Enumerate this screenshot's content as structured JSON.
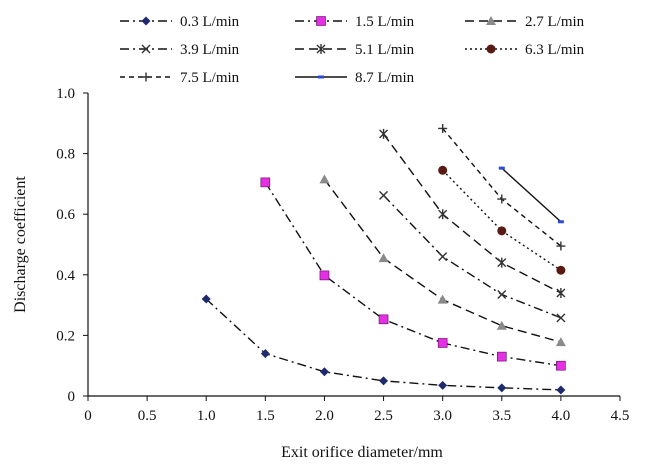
{
  "chart_data": {
    "type": "line",
    "xlabel": "Exit orifice diameter/mm",
    "ylabel": "Discharge coefficient",
    "xlim": [
      0,
      4.5
    ],
    "ylim": [
      0,
      1.0
    ],
    "x_ticks": [
      0,
      0.5,
      1.0,
      1.5,
      2.0,
      2.5,
      3.0,
      3.5,
      4.0,
      4.5
    ],
    "x_tick_labels": [
      "0",
      "0.5",
      "1.0",
      "1.5",
      "2.0",
      "2.5",
      "3.0",
      "3.5",
      "4.0",
      "4.5"
    ],
    "y_ticks": [
      0,
      0.2,
      0.4,
      0.6,
      0.8,
      1.0
    ],
    "y_tick_labels": [
      "0",
      "0.2",
      "0.4",
      "0.6",
      "0.8",
      "1.0"
    ],
    "grid": false,
    "legend_position": "top",
    "series": [
      {
        "name": "0.3 L/min",
        "x": [
          1.0,
          1.5,
          2.0,
          2.5,
          3.0,
          3.5,
          4.0
        ],
        "y": [
          0.32,
          0.14,
          0.08,
          0.05,
          0.035,
          0.027,
          0.02
        ],
        "marker": "diamond",
        "marker_color": "#1f2a6e",
        "dash": "dashdot"
      },
      {
        "name": "1.5 L/min",
        "x": [
          1.5,
          2.0,
          2.5,
          3.0,
          3.5,
          4.0
        ],
        "y": [
          0.705,
          0.398,
          0.253,
          0.175,
          0.13,
          0.1
        ],
        "marker": "square",
        "marker_color": "#e52fe5",
        "dash": "dashdot"
      },
      {
        "name": "2.7 L/min",
        "x": [
          2.0,
          2.5,
          3.0,
          3.5,
          4.0
        ],
        "y": [
          0.715,
          0.455,
          0.318,
          0.232,
          0.178
        ],
        "marker": "triangle",
        "marker_color": "#8a8a8a",
        "dash": "dash"
      },
      {
        "name": "3.9 L/min",
        "x": [
          2.5,
          3.0,
          3.5,
          4.0
        ],
        "y": [
          0.662,
          0.46,
          0.335,
          0.258
        ],
        "marker": "x",
        "marker_color": "#333333",
        "dash": "dashdot"
      },
      {
        "name": "5.1 L/min",
        "x": [
          2.5,
          3.0,
          3.5,
          4.0
        ],
        "y": [
          0.865,
          0.6,
          0.44,
          0.34
        ],
        "marker": "star",
        "marker_color": "#333333",
        "dash": "dash"
      },
      {
        "name": "6.3 L/min",
        "x": [
          3.0,
          3.5,
          4.0
        ],
        "y": [
          0.745,
          0.545,
          0.415
        ],
        "marker": "circle",
        "marker_color": "#5a1a14",
        "dash": "dot"
      },
      {
        "name": "7.5 L/min",
        "x": [
          3.0,
          3.5,
          4.0
        ],
        "y": [
          0.883,
          0.65,
          0.495
        ],
        "marker": "plus",
        "marker_color": "#333333",
        "dash": "shortdash"
      },
      {
        "name": "8.7 L/min",
        "x": [
          3.5,
          4.0
        ],
        "y": [
          0.752,
          0.575
        ],
        "marker": "dash",
        "marker_color": "#2b4bd6",
        "dash": "solid"
      }
    ]
  }
}
